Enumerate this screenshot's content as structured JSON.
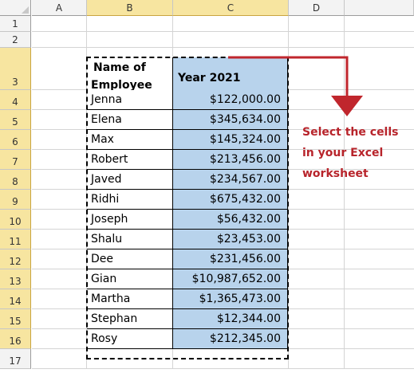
{
  "columns": [
    "A",
    "B",
    "C",
    "D"
  ],
  "rows": [
    "1",
    "2",
    "3",
    "4",
    "5",
    "6",
    "7",
    "8",
    "9",
    "10",
    "11",
    "12",
    "13",
    "14",
    "15",
    "16",
    "17"
  ],
  "table": {
    "header_name": "Name of Employee",
    "header_name_line1": "Name of",
    "header_name_line2": "Employee",
    "header_year": "Year 2021",
    "records": [
      {
        "name": "Jenna",
        "amount": "$122,000.00"
      },
      {
        "name": "Elena",
        "amount": "$345,634.00"
      },
      {
        "name": "Max",
        "amount": "$145,324.00"
      },
      {
        "name": "Robert",
        "amount": "$213,456.00"
      },
      {
        "name": "Javed",
        "amount": "$234,567.00"
      },
      {
        "name": "Ridhi",
        "amount": "$675,432.00"
      },
      {
        "name": "Joseph",
        "amount": "$56,432.00"
      },
      {
        "name": "Shalu",
        "amount": "$23,453.00"
      },
      {
        "name": "Dee",
        "amount": "$231,456.00"
      },
      {
        "name": "Gian",
        "amount": "$10,987,652.00"
      },
      {
        "name": "Martha",
        "amount": "$1,365,473.00"
      },
      {
        "name": "Stephan",
        "amount": "$12,344.00"
      },
      {
        "name": "Rosy",
        "amount": "$212,345.00"
      }
    ]
  },
  "annotation": {
    "lines": [
      "Select the cells",
      "in your Excel",
      "worksheet"
    ]
  },
  "colors": {
    "selection_fill": "#b8d3ec",
    "header_highlight": "#f7e5a0",
    "annotation": "#b8242b",
    "arrow": "#c0262d"
  }
}
